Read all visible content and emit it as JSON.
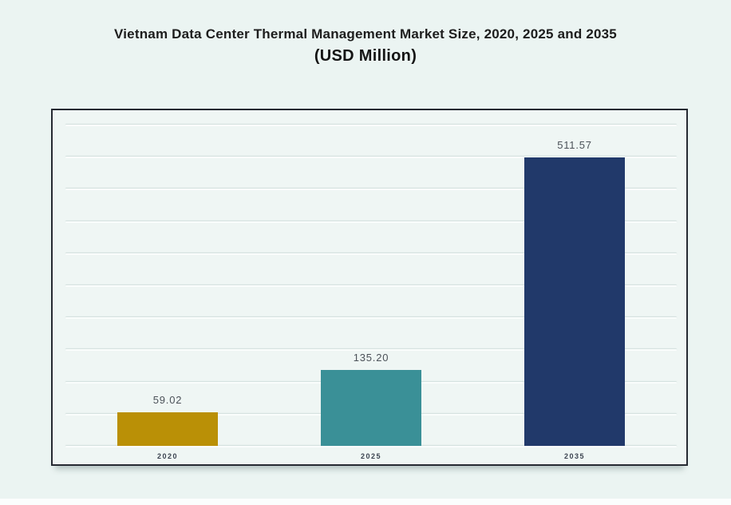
{
  "title": {
    "line1": "Vietnam Data Center Thermal Management Market Size, 2020, 2025 and 2035",
    "line2": "(USD Million)"
  },
  "chart_data": {
    "type": "bar",
    "title": "Vietnam Data Center Thermal Management Market Size, 2020, 2025 and 2035 (USD Million)",
    "categories": [
      "2020",
      "2025",
      "2035"
    ],
    "values": [
      59.02,
      135.2,
      511.57
    ],
    "value_labels": [
      "59.02",
      "135.20",
      "511.57"
    ],
    "bar_colors": [
      "#ba9006",
      "#3a9097",
      "#21396a"
    ],
    "xlabel": "",
    "ylabel": "",
    "ylim": [
      0,
      595
    ],
    "y_axis_labels_visible": false,
    "grid": "horizontal",
    "gridline_count": 11,
    "legend": "none",
    "colors": {
      "page_background": "#ebf4f2",
      "plot_background": "#eff6f4",
      "plot_border": "#262a32",
      "gridline": "#fafdfc",
      "title_text": "#1d1d1d",
      "value_label_text": "#4b5158",
      "category_label_text": "#3b4350"
    }
  }
}
